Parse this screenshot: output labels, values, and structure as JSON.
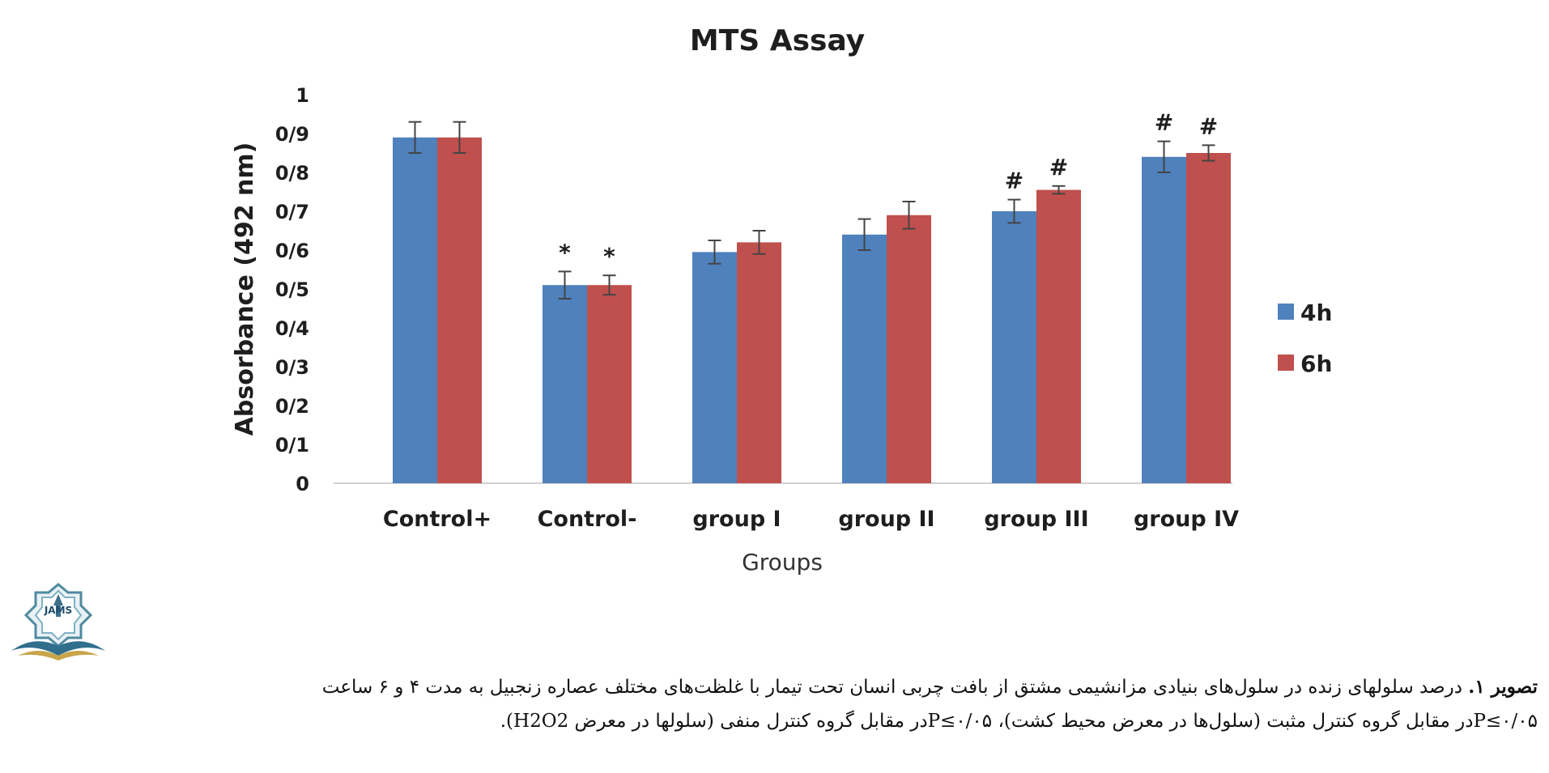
{
  "chart_data": {
    "type": "bar",
    "title": "MTS Assay",
    "xlabel": "Groups",
    "ylabel": "Absorbance (492 nm)",
    "ylim": [
      0,
      1
    ],
    "yticks": [
      "0",
      "0/1",
      "0/2",
      "0/3",
      "0/4",
      "0/5",
      "0/6",
      "0/7",
      "0/8",
      "0/9",
      "1"
    ],
    "categories": [
      "Control+",
      "Control-",
      "group I",
      "group II",
      "group III",
      "group IV"
    ],
    "series": [
      {
        "name": "4h",
        "color": "#4f81bd",
        "values": [
          0.89,
          0.51,
          0.595,
          0.64,
          0.7,
          0.84
        ],
        "errors": [
          0.04,
          0.035,
          0.03,
          0.04,
          0.03,
          0.04
        ],
        "marks": [
          "",
          "*",
          "",
          "",
          "#",
          "#"
        ]
      },
      {
        "name": "6h",
        "color": "#c0504d",
        "values": [
          0.89,
          0.51,
          0.62,
          0.69,
          0.755,
          0.85
        ],
        "errors": [
          0.04,
          0.025,
          0.03,
          0.035,
          0.01,
          0.02
        ],
        "marks": [
          "",
          "*",
          "",
          "",
          "#",
          "#"
        ]
      }
    ],
    "grid": false,
    "legend": "right"
  },
  "caption": {
    "title": "تصویر ۱.",
    "line1": "درصد سلولهای زنده در سلول‌های بنیادی مزانشیمی مشتق از بافت چربی انسان تحت تیمار با غلظت‌های مختلف عصاره زنجبیل به مدت ۴ و ۶ ساعت",
    "line2": "P≤۰/۰۵در مقابل گروه کنترل مثبت (سلول‌ها در معرض محیط کشت)، P≤۰/۰۵در مقابل گروه کنترل منفی (سلولها در معرض H2O2)."
  },
  "logo": {
    "text": "JAMS"
  }
}
